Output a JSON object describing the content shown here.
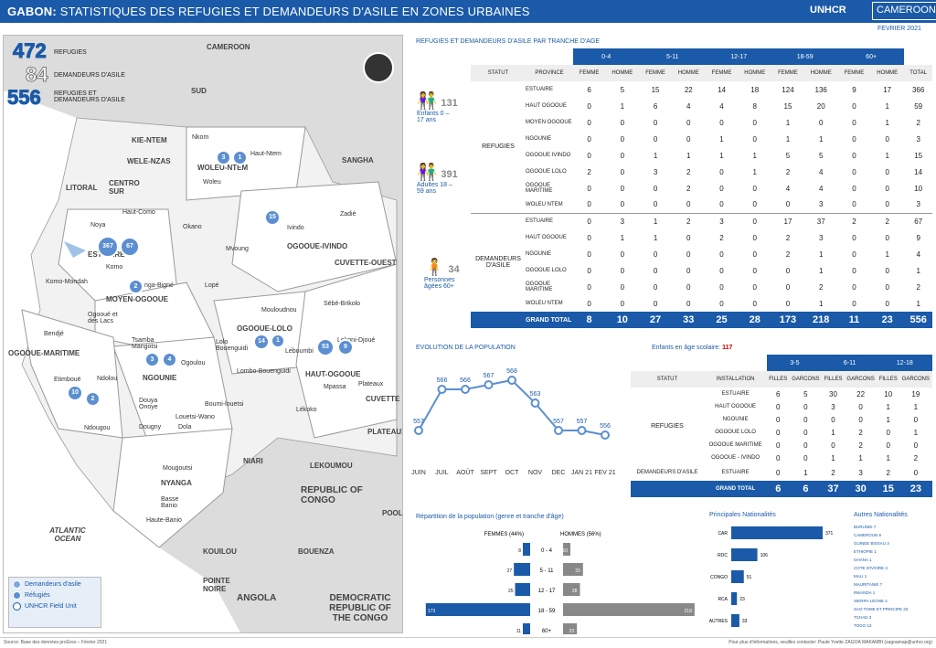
{
  "header": {
    "title_bold": "GABON:",
    "title": " STATISTIQUES DES REFUGIES ET DEMANDEURS D'ASILE EN ZONES URBAINES",
    "logo": "UNHCR",
    "logo2": "CAMEROON",
    "date": "FEVRIER 2021"
  },
  "totals": {
    "refugies": "472",
    "refugies_label": "REFUGIES",
    "demandeurs": "84",
    "demandeurs_label": "DEMANDEURS D'ASILE",
    "total": "556",
    "total_label": "REFUGIES ET DEMANDEURS D'ASILE"
  },
  "map": {
    "labels": [
      "CAMEROON",
      "SUD",
      "KIE-NTEM",
      "WELE-NZAS",
      "LITORAL",
      "CENTRO SUR",
      "SANGHA",
      "WOLEU-NTEM",
      "ESTUAIRE",
      "MOYEN-OGOOUE",
      "OGOOUE-IVINDO",
      "CUVETTE-OUEST",
      "OGOOUE-LOLO",
      "NGOUNIE",
      "OGOOUE-MARITIME",
      "HAUT-OGOOUE",
      "PLATEAUX",
      "CUVETTE",
      "NIARI",
      "LEKOUMOU",
      "NYANGA",
      "REPUBLIC OF CONGO",
      "KOUILOU",
      "BOUENZA",
      "POOL",
      "POINTE NOIRE",
      "ANGOLA",
      "DEMOCRATIC REPUBLIC OF THE CONGO",
      "ATLANTIC OCEAN"
    ],
    "towns": [
      "Nkom",
      "Haut-Ntem",
      "Woleu",
      "Haut-Como",
      "Noya",
      "Okano",
      "Komo",
      "Komo-Mondah",
      "nga-Bigné",
      "Lopé",
      "Mvoung",
      "Ivindo",
      "Zadié",
      "Ogooué et des Lacs",
      "Bendjé",
      "Mouloudnou",
      "Sébé-Brikolo",
      "Tsamba Mangotsi",
      "Lolo Bouenguidi",
      "Léboumbi",
      "Lekoni-Djoué",
      "Ogoulou",
      "Etimboué",
      "Ndolou",
      "Lombo-Bouenguidi",
      "Mpassa",
      "Plateaux",
      "Douya Onoye",
      "Boumi-louetsi",
      "Louetsi-Wano",
      "Dola",
      "Lékoko",
      "Ndougou",
      "Dougny",
      "Mougoutsi",
      "Basse Banio",
      "Haute-Banio"
    ],
    "dots": [
      "3",
      "1",
      "15",
      "367",
      "67",
      "2",
      "14",
      "1",
      "53",
      "9",
      "3",
      "4",
      "10",
      "2"
    ],
    "legend": [
      "Demandeurs d'asile",
      "Réfugiés",
      "UNHCR Field Unit"
    ]
  },
  "age_table": {
    "title": "REFUGIES ET DEMANDEURS D'ASILE PAR TRANCHE D'AGE",
    "groups": [
      "0-4",
      "5-11",
      "12-17",
      "18-59",
      "60+"
    ],
    "cols": [
      "STATUT",
      "PROVINCE",
      "FEMME",
      "HOMME",
      "FEMME",
      "HOMME",
      "FEMME",
      "HOMME",
      "FEMME",
      "HOMME",
      "FEMME",
      "HOMME",
      "TOTAL"
    ],
    "refugies_label": "REFUGIES",
    "demandeurs_label": "DEMANDEURS D'ASILE",
    "refugies": [
      [
        "ESTUAIRE",
        "6",
        "5",
        "15",
        "22",
        "14",
        "18",
        "124",
        "136",
        "9",
        "17",
        "366"
      ],
      [
        "HAUT OGOOUE",
        "0",
        "1",
        "6",
        "4",
        "4",
        "8",
        "15",
        "20",
        "0",
        "1",
        "59"
      ],
      [
        "MOYEN OGOOUE",
        "0",
        "0",
        "0",
        "0",
        "0",
        "0",
        "1",
        "0",
        "0",
        "1",
        "2"
      ],
      [
        "NGOUNIE",
        "0",
        "0",
        "0",
        "0",
        "1",
        "0",
        "1",
        "1",
        "0",
        "0",
        "3"
      ],
      [
        "OGOOUE IVINDO",
        "0",
        "0",
        "1",
        "1",
        "1",
        "1",
        "5",
        "5",
        "0",
        "1",
        "15"
      ],
      [
        "OGOOUE LOLO",
        "2",
        "0",
        "3",
        "2",
        "0",
        "1",
        "2",
        "4",
        "0",
        "0",
        "14"
      ],
      [
        "OGOOUE MARITIME",
        "0",
        "0",
        "0",
        "2",
        "0",
        "0",
        "4",
        "4",
        "0",
        "0",
        "10"
      ],
      [
        "WOLEU NTEM",
        "0",
        "0",
        "0",
        "0",
        "0",
        "0",
        "0",
        "3",
        "0",
        "0",
        "3"
      ]
    ],
    "demandeurs": [
      [
        "ESTUAIRE",
        "0",
        "3",
        "1",
        "2",
        "3",
        "0",
        "17",
        "37",
        "2",
        "2",
        "67"
      ],
      [
        "HAUT OGOOUE",
        "0",
        "1",
        "1",
        "0",
        "2",
        "0",
        "2",
        "3",
        "0",
        "0",
        "9"
      ],
      [
        "NGOUNIE",
        "0",
        "0",
        "0",
        "0",
        "0",
        "0",
        "2",
        "1",
        "0",
        "1",
        "4"
      ],
      [
        "OGOOUE LOLO",
        "0",
        "0",
        "0",
        "0",
        "0",
        "0",
        "0",
        "1",
        "0",
        "0",
        "1"
      ],
      [
        "OGOOUE MARITIME",
        "0",
        "0",
        "0",
        "0",
        "0",
        "0",
        "0",
        "2",
        "0",
        "0",
        "2"
      ],
      [
        "WOLEU NTEM",
        "0",
        "0",
        "0",
        "0",
        "0",
        "0",
        "0",
        "1",
        "0",
        "0",
        "1"
      ]
    ],
    "grand_total": [
      "GRAND TOTAL",
      "8",
      "10",
      "27",
      "33",
      "25",
      "28",
      "173",
      "218",
      "11",
      "23",
      "556"
    ],
    "side": [
      {
        "n": "131",
        "l": "Enfants 0 – 17 ans"
      },
      {
        "n": "391",
        "l": "Adultes 18 – 59 ans"
      },
      {
        "n": "34",
        "l": "Personnes âgées 60+"
      }
    ]
  },
  "evolution": {
    "title": "EVOLUTION DE LA POPULATION",
    "months": [
      "JUIN",
      "JUIL",
      "AOÛT",
      "SEPT",
      "OCT",
      "NOV",
      "DEC",
      "JAN 21",
      "FEV 21"
    ],
    "values": [
      557,
      566,
      566,
      567,
      568,
      563,
      557,
      557,
      556
    ]
  },
  "school": {
    "title": "Enfants en âge scolaire:",
    "total": "117",
    "groups": [
      "3-5",
      "6-11",
      "12-18"
    ],
    "cols": [
      "STATUT",
      "INSTALLATION",
      "FILLES",
      "GARCONS",
      "FILLES",
      "GARCONS",
      "FILLES",
      "GARCONS"
    ],
    "refugies_label": "REFUGIES",
    "demandeurs_label": "DEMANDEURS D'ASILE",
    "rows": [
      [
        "ESTUAIRE",
        "6",
        "5",
        "30",
        "22",
        "10",
        "19"
      ],
      [
        "HAUT OGOOUE",
        "0",
        "0",
        "3",
        "0",
        "1",
        "1"
      ],
      [
        "NGOUNIE",
        "0",
        "0",
        "0",
        "0",
        "1",
        "0"
      ],
      [
        "OGOOUE LOLO",
        "0",
        "0",
        "1",
        "2",
        "0",
        "1"
      ],
      [
        "OGOOUE MARITIME",
        "0",
        "0",
        "0",
        "2",
        "0",
        "0"
      ],
      [
        "OGOOUE - IVINDO",
        "0",
        "0",
        "1",
        "1",
        "1",
        "2"
      ]
    ],
    "dem_row": [
      "ESTUAIRE",
      "0",
      "1",
      "2",
      "3",
      "2",
      "0"
    ],
    "grand_total": [
      "GRAND TOTAL",
      "6",
      "6",
      "37",
      "30",
      "15",
      "23"
    ]
  },
  "pyramid": {
    "title": "Répartition de la population (genre et tranche d'âge)",
    "f_label": "FEMMES (44%)",
    "h_label": "HOMMES (56%)",
    "ages": [
      "0 - 4",
      "5 - 11",
      "12 - 17",
      "18 - 59",
      "60+"
    ],
    "f": [
      8,
      27,
      25,
      173,
      11
    ],
    "h": [
      10,
      33,
      28,
      218,
      23
    ]
  },
  "nationalites": {
    "title": "Principales Nationalités",
    "items": [
      {
        "n": "CAR",
        "v": 371
      },
      {
        "n": "RDC",
        "v": 106
      },
      {
        "n": "CONGO",
        "v": 51
      },
      {
        "n": "RCA",
        "v": 23
      },
      {
        "n": "AUTRES",
        "v": 33
      }
    ]
  },
  "autres": {
    "title": "Autres Nationalités",
    "items": [
      "BURUNDI 7",
      "CAMEROUN 9",
      "GUINEE BISSAU 3",
      "ETHIOPIE 1",
      "GHANA 1",
      "COTE D'IVOIRE 3",
      "MALI 1",
      "MAURITANIE 7",
      "RWANDA 1",
      "SIERRA LEONE 4",
      "SAO TOME ET PRINCIPE 33",
      "TCHAD 3",
      "TOGO 13"
    ]
  },
  "footer": {
    "left": "Source: Base des données proGres – Février 2021",
    "right": "Pour plus d'informations, veuillez contacter: Paule Yvette ZAGOA MAKAMBI (zagoamap@unhcr.org)"
  }
}
